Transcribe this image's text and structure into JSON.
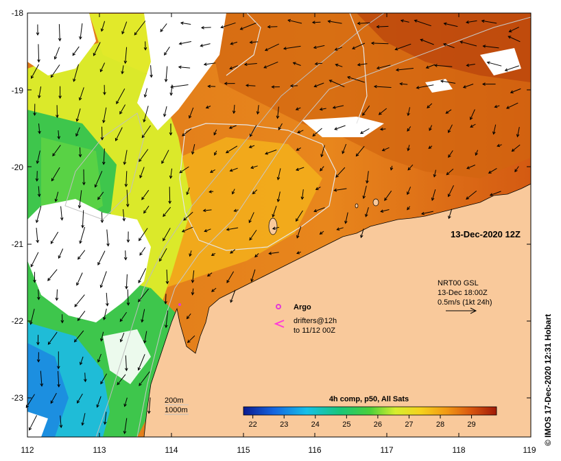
{
  "map": {
    "lat_ticks": [
      "-18",
      "-19",
      "-20",
      "-21",
      "-22",
      "-23"
    ],
    "lon_ticks": [
      "112",
      "113",
      "114",
      "115",
      "116",
      "117",
      "118",
      "119"
    ],
    "lat_range": [
      -23.5,
      -18.0
    ],
    "lon_range": [
      112.0,
      119.0
    ],
    "date_label": "13-Dec-2020 12Z",
    "current_legend": {
      "line1": "NRT00 GSL",
      "line2": "13-Dec 18:00Z",
      "line3": "0.5m/s (1kt 24h)"
    },
    "argo_label": "Argo",
    "drifters_label_1": "drifters@12h",
    "drifters_label_2": "to 11/12 00Z",
    "isobath_200": "200m",
    "isobath_1000": "1000m",
    "colorbar_title": "4h comp, p50, All Sats",
    "colorbar_ticks": [
      "22",
      "23",
      "24",
      "25",
      "26",
      "27",
      "28",
      "29"
    ],
    "colorbar_range": [
      21.7,
      29.8
    ],
    "credit": "© IMOS 17-Dec-2020 12:31 Hobart",
    "colors": {
      "land": "#f9c99b",
      "cloud": "#ffffff",
      "argo": "#e23ad6",
      "drifter": "#ff3bd7"
    }
  }
}
